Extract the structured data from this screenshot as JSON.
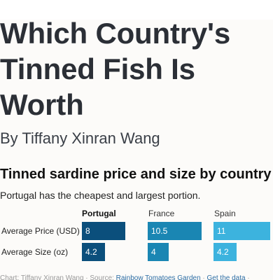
{
  "article": {
    "title": "Which Country's Tinned Fish Is Worth",
    "byline": "By Tiffany Xinran Wang"
  },
  "chart_data": {
    "type": "table",
    "title": "Tinned sardine price and size by country",
    "subtitle": "Portugal has the cheapest and largest portion.",
    "columns": [
      "Portugal",
      "France",
      "Spain"
    ],
    "highlight_column": "Portugal",
    "rows": [
      {
        "label": "Average Price (USD)",
        "values": [
          8,
          10.5,
          11
        ],
        "display": [
          "8",
          "10.5",
          "11"
        ],
        "max": 11
      },
      {
        "label": "Average Size (oz)",
        "values": [
          4.2,
          4,
          4.2
        ],
        "display": [
          "4.2",
          "4",
          "4.2"
        ],
        "max": 4.2
      }
    ],
    "colors": [
      "#0b4f7c",
      "#1a86b3",
      "#3cb3de"
    ]
  },
  "footer": {
    "credit": "Chart: Tiffany Xinran Wang · Source: ",
    "source_link": "Rainbow Tomatoes Garden",
    "separator": " · ",
    "data_link": "Get the data",
    "tail": " ·"
  }
}
